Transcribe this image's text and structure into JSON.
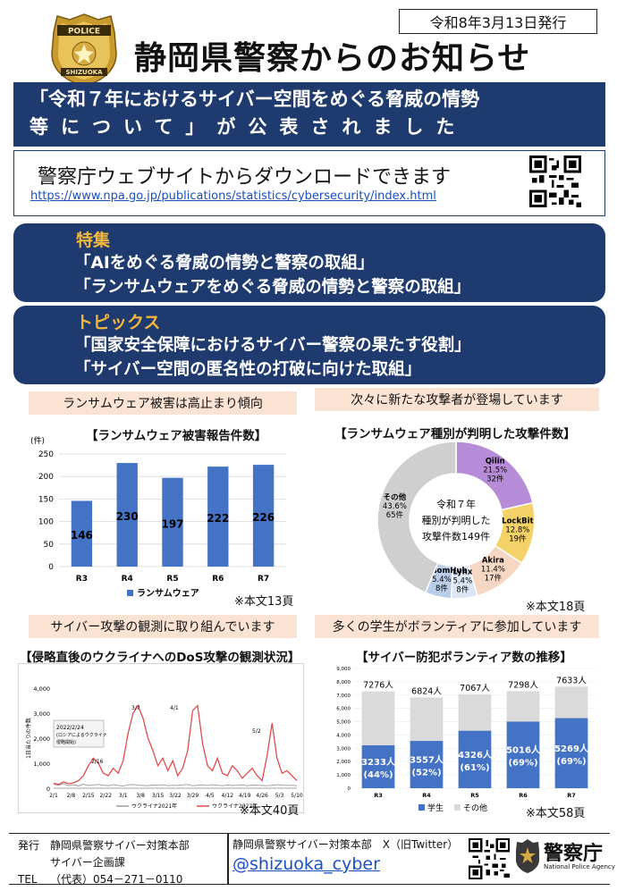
{
  "header": {
    "date": "令和8年3月13日発行",
    "badge_top": "POLICE",
    "badge_bottom": "SHIZUOKA",
    "title": "静岡県警察からのお知らせ"
  },
  "banner": {
    "line1": "「令和７年におけるサイバー空間をめぐる脅威の情勢",
    "line2": "等について」が公表されました"
  },
  "download": {
    "title": "警察庁ウェブサイトからダウンロードできます",
    "url": "https://www.npa.go.jp/publications/statistics/cybersecurity/index.html"
  },
  "features": {
    "heading": "特集",
    "items": [
      "「AIをめぐる脅威の情勢と警察の取組」",
      "「ランサムウェアをめぐる脅威の情勢と警察の取組」"
    ]
  },
  "topics": {
    "heading": "トピックス",
    "items": [
      "「国家安全保障におけるサイバー警察の果たす役割」",
      "「サイバー空間の匿名性の打破に向けた取組」"
    ]
  },
  "sections": {
    "s1": "ランサムウェア被害は高止まり傾向",
    "s2": "次々に新たな攻撃者が登場しています",
    "s3": "サイバー攻撃の観測に取り組んでいます",
    "s4": "多くの学生がボランティアに参加しています"
  },
  "notes": {
    "n1": "※本文13頁",
    "n2": "※本文18頁",
    "n3": "※本文40頁",
    "n4": "※本文58頁"
  },
  "chart_data": [
    {
      "type": "bar",
      "title": "【ランサムウェア被害報告件数】",
      "ylabel": "(件)",
      "categories": [
        "R3",
        "R4",
        "R5",
        "R6",
        "R7"
      ],
      "values": [
        146,
        230,
        197,
        222,
        226
      ],
      "value_labels": [
        "146",
        "230",
        "197",
        "222",
        "226"
      ],
      "ylim": [
        0,
        250
      ],
      "yticks": [
        "0",
        "50",
        "100",
        "150",
        "200",
        "250"
      ],
      "series": [
        {
          "name": "ランサムウェア",
          "values": [
            146,
            230,
            197,
            222,
            226
          ]
        }
      ],
      "color": "#4472c4",
      "grid": true,
      "legend": "bottom"
    },
    {
      "type": "pie",
      "title": "【ランサムウェア種別が判明した攻撃件数】",
      "center_text": [
        "令和７年",
        "種別が判明した",
        "攻撃件数149件"
      ],
      "slices": [
        {
          "label": "Qilin",
          "pct": "21.5%",
          "count": "32件",
          "value": 32,
          "color": "#b68bd8"
        },
        {
          "label": "LockBit",
          "pct": "12.8%",
          "count": "19件",
          "value": 19,
          "color": "#f5d267"
        },
        {
          "label": "Akira",
          "pct": "11.4%",
          "count": "17件",
          "value": 17,
          "color": "#f6d7c3"
        },
        {
          "label": "Lynx",
          "pct": "5.4%",
          "count": "8件",
          "value": 8,
          "color": "#dce6f5"
        },
        {
          "label": "RansomHub",
          "pct": "5.4%",
          "count": "8件",
          "value": 8,
          "color": "#b9cde9"
        },
        {
          "label": "その他",
          "pct": "43.6%",
          "count": "65件",
          "value": 65,
          "color": "#cfcfcf"
        }
      ]
    },
    {
      "type": "line",
      "title": "【侵略直後のウクライナへのDoS攻撃の観測状況】",
      "ylabel": "1日当たりの件数",
      "yticks": [
        "0",
        "1,000",
        "2,000",
        "3,000",
        "4,000"
      ],
      "ylim": [
        0,
        4000
      ],
      "xticks": [
        "2/1",
        "2/8",
        "2/15",
        "2/22",
        "3/1",
        "3/8",
        "3/15",
        "3/22",
        "3/29",
        "4/5",
        "4/12",
        "4/19",
        "4/26",
        "5/3",
        "5/10"
      ],
      "annotations": [
        "2022/2/24",
        "(ロシアによるウクライナ",
        "侵略開始)",
        "2/16",
        "3/7",
        "4/1",
        "5/2"
      ],
      "series": [
        {
          "name": "ウクライナ2021年",
          "color": "#9a9a9a",
          "values": [
            150,
            120,
            180,
            100,
            140,
            90,
            160,
            110,
            130,
            150,
            120,
            100,
            140,
            110,
            90,
            130,
            150,
            120,
            110,
            100,
            130,
            120,
            140,
            100,
            120,
            110,
            130,
            150,
            100,
            120,
            130,
            110,
            140,
            120,
            100,
            130,
            110,
            120,
            140,
            100,
            130,
            120,
            110,
            100,
            120,
            140,
            130,
            110,
            120,
            100
          ]
        },
        {
          "name": "ウクライナ2022年",
          "color": "#e04c4c",
          "values": [
            200,
            150,
            250,
            180,
            220,
            300,
            500,
            900,
            1200,
            1000,
            600,
            500,
            800,
            600,
            1100,
            2200,
            3000,
            3300,
            2800,
            2000,
            1500,
            900,
            1200,
            700,
            1100,
            500,
            800,
            1500,
            3100,
            3300,
            1800,
            900,
            700,
            1200,
            600,
            500,
            900,
            700,
            400,
            600,
            800,
            500,
            300,
            1300,
            2600,
            1200,
            600,
            700,
            500,
            300
          ]
        }
      ]
    },
    {
      "type": "bar",
      "title": "【サイバー防犯ボランティア数の推移】",
      "categories": [
        "R3",
        "R4",
        "R5",
        "R6",
        "R7"
      ],
      "ylim": [
        0,
        9000
      ],
      "yticks": [
        "0",
        "1,000",
        "2,000",
        "3,000",
        "4,000",
        "5,000",
        "6,000",
        "7,000",
        "8,000",
        "9,000"
      ],
      "totals": [
        7276,
        6824,
        7067,
        7298,
        7633
      ],
      "total_labels": [
        "7276人",
        "6824人",
        "7067人",
        "7298人",
        "7633人"
      ],
      "series": [
        {
          "name": "学生",
          "values": [
            3233,
            3557,
            4326,
            5016,
            5269
          ],
          "labels": [
            "3233人",
            "3557人",
            "4326人",
            "5016人",
            "5269人"
          ],
          "pct": [
            "(44%)",
            "(52%)",
            "(61%)",
            "(69%)",
            "(69%)"
          ],
          "color": "#4472c4"
        },
        {
          "name": "その他",
          "values": [
            4043,
            3267,
            2741,
            2282,
            2364
          ],
          "color": "#dadada"
        }
      ],
      "legend": "bottom"
    }
  ],
  "footer": {
    "issuer_label": "発行",
    "issuer": "静岡県警察サイバー対策本部",
    "section": "サイバー企画課",
    "tel_label": "TEL",
    "tel": "（代表）054－271－0110",
    "x_account_label": "静岡県警察サイバー対策本部　X（旧Twitter）",
    "handle": "@shizuoka_cyber",
    "npa_name": "警察庁",
    "npa_en": "National Police Agency"
  }
}
